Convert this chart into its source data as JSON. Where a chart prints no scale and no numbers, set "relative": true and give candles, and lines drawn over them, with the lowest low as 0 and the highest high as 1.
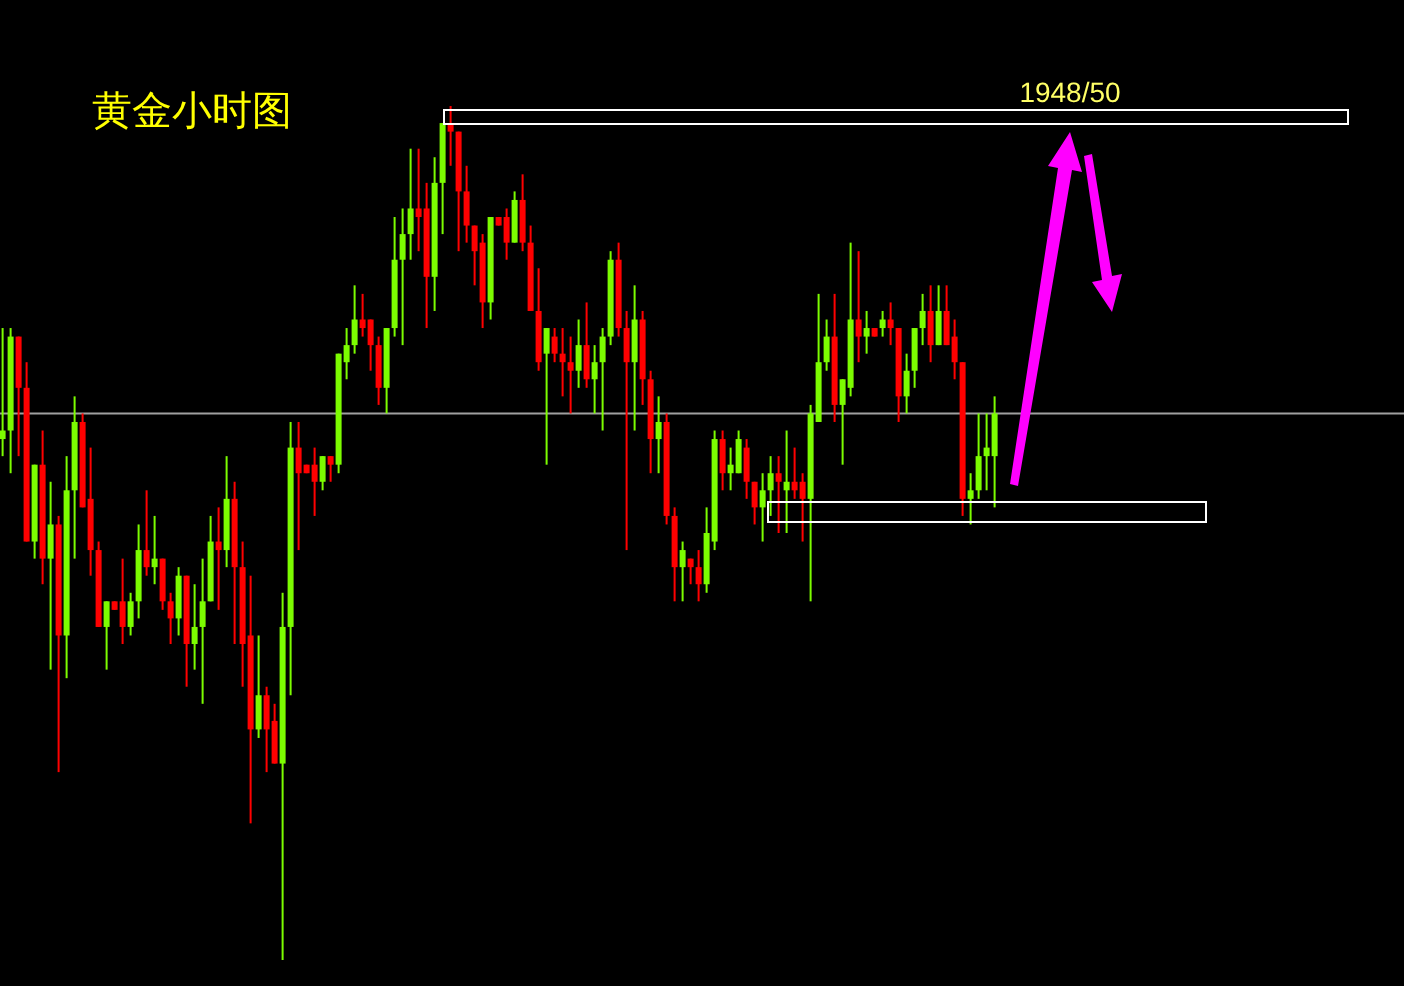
{
  "chart_data": {
    "type": "candlestick",
    "title": "黄金小时图",
    "relative": true,
    "annotations": [
      "1948/50"
    ],
    "ref_lines": [
      {
        "axis": "y",
        "value": 0.64,
        "color": "#a0a0a0"
      }
    ],
    "categories": [
      null,
      null,
      null,
      null,
      null,
      null,
      null,
      null,
      null,
      null,
      null,
      null,
      null,
      null,
      null,
      null,
      null,
      null,
      null,
      null,
      null,
      null,
      null,
      null,
      null,
      null,
      null,
      null,
      null,
      null,
      null,
      null,
      null,
      null,
      null,
      null,
      null,
      null,
      null,
      null,
      null,
      null,
      null,
      null,
      null,
      null,
      null,
      null,
      null,
      null,
      null,
      null,
      null,
      null,
      null,
      null,
      null,
      null,
      null,
      null,
      null,
      null,
      null,
      null,
      null,
      null,
      null,
      null,
      null,
      null,
      null,
      null,
      null,
      null,
      null,
      null,
      null,
      null,
      null,
      null,
      null,
      null,
      null,
      null,
      null,
      null,
      null,
      null,
      null,
      null,
      null,
      null,
      null,
      null,
      null,
      null,
      null,
      null,
      null,
      null,
      null,
      null,
      null,
      null,
      null,
      null,
      null,
      null,
      null,
      null,
      null,
      null,
      null,
      null,
      null,
      null,
      null,
      null,
      null,
      null,
      null,
      null,
      null,
      null,
      null
    ],
    "ohlc": [
      [
        0.61,
        0.74,
        0.59,
        0.62
      ],
      [
        0.62,
        0.74,
        0.57,
        0.73
      ],
      [
        0.73,
        0.73,
        0.59,
        0.67
      ],
      [
        0.67,
        0.7,
        0.49,
        0.49
      ],
      [
        0.49,
        0.58,
        0.47,
        0.58
      ],
      [
        0.58,
        0.62,
        0.44,
        0.47
      ],
      [
        0.47,
        0.56,
        0.34,
        0.51
      ],
      [
        0.51,
        0.52,
        0.22,
        0.38
      ],
      [
        0.38,
        0.59,
        0.33,
        0.55
      ],
      [
        0.55,
        0.66,
        0.47,
        0.63
      ],
      [
        0.63,
        0.64,
        0.53,
        0.53
      ],
      [
        0.54,
        0.6,
        0.45,
        0.48
      ],
      [
        0.48,
        0.49,
        0.39,
        0.39
      ],
      [
        0.39,
        0.42,
        0.34,
        0.42
      ],
      [
        0.42,
        0.42,
        0.41,
        0.41
      ],
      [
        0.42,
        0.47,
        0.37,
        0.39
      ],
      [
        0.39,
        0.43,
        0.38,
        0.42
      ],
      [
        0.42,
        0.51,
        0.4,
        0.48
      ],
      [
        0.48,
        0.55,
        0.45,
        0.46
      ],
      [
        0.46,
        0.52,
        0.44,
        0.47
      ],
      [
        0.47,
        0.47,
        0.41,
        0.42
      ],
      [
        0.42,
        0.43,
        0.37,
        0.4
      ],
      [
        0.4,
        0.46,
        0.38,
        0.45
      ],
      [
        0.45,
        0.45,
        0.32,
        0.37
      ],
      [
        0.37,
        0.44,
        0.34,
        0.39
      ],
      [
        0.39,
        0.47,
        0.3,
        0.42
      ],
      [
        0.42,
        0.52,
        0.42,
        0.49
      ],
      [
        0.49,
        0.53,
        0.41,
        0.48
      ],
      [
        0.48,
        0.59,
        0.46,
        0.54
      ],
      [
        0.54,
        0.56,
        0.37,
        0.46
      ],
      [
        0.46,
        0.49,
        0.32,
        0.37
      ],
      [
        0.38,
        0.45,
        0.16,
        0.27
      ],
      [
        0.27,
        0.38,
        0.26,
        0.31
      ],
      [
        0.31,
        0.32,
        0.22,
        0.27
      ],
      [
        0.28,
        0.3,
        0.23,
        0.23
      ],
      [
        0.23,
        0.43,
        0.0,
        0.39
      ],
      [
        0.39,
        0.63,
        0.31,
        0.6
      ],
      [
        0.6,
        0.63,
        0.48,
        0.57
      ],
      [
        0.58,
        0.58,
        0.57,
        0.57
      ],
      [
        0.58,
        0.6,
        0.52,
        0.56
      ],
      [
        0.56,
        0.59,
        0.55,
        0.59
      ],
      [
        0.59,
        0.59,
        0.56,
        0.58
      ],
      [
        0.58,
        0.71,
        0.57,
        0.71
      ],
      [
        0.7,
        0.74,
        0.68,
        0.72
      ],
      [
        0.72,
        0.79,
        0.71,
        0.75
      ],
      [
        0.75,
        0.78,
        0.73,
        0.74
      ],
      [
        0.75,
        0.75,
        0.69,
        0.72
      ],
      [
        0.72,
        0.73,
        0.65,
        0.67
      ],
      [
        0.67,
        0.74,
        0.64,
        0.74
      ],
      [
        0.74,
        0.87,
        0.73,
        0.82
      ],
      [
        0.82,
        0.88,
        0.72,
        0.85
      ],
      [
        0.85,
        0.95,
        0.82,
        0.88
      ],
      [
        0.88,
        0.95,
        0.83,
        0.87
      ],
      [
        0.88,
        0.91,
        0.74,
        0.8
      ],
      [
        0.8,
        0.94,
        0.76,
        0.91
      ],
      [
        0.91,
        0.98,
        0.85,
        0.98
      ],
      [
        0.98,
        1.0,
        0.93,
        0.97
      ],
      [
        0.97,
        0.97,
        0.83,
        0.9
      ],
      [
        0.9,
        0.93,
        0.84,
        0.86
      ],
      [
        0.86,
        0.86,
        0.79,
        0.83
      ],
      [
        0.84,
        0.85,
        0.74,
        0.77
      ],
      [
        0.77,
        0.87,
        0.75,
        0.87
      ],
      [
        0.87,
        0.87,
        0.86,
        0.86
      ],
      [
        0.87,
        0.88,
        0.82,
        0.84
      ],
      [
        0.84,
        0.9,
        0.84,
        0.89
      ],
      [
        0.89,
        0.92,
        0.83,
        0.84
      ],
      [
        0.84,
        0.86,
        0.76,
        0.76
      ],
      [
        0.76,
        0.81,
        0.69,
        0.7
      ],
      [
        0.71,
        0.74,
        0.58,
        0.74
      ],
      [
        0.73,
        0.74,
        0.7,
        0.71
      ],
      [
        0.71,
        0.74,
        0.66,
        0.7
      ],
      [
        0.7,
        0.73,
        0.64,
        0.69
      ],
      [
        0.69,
        0.75,
        0.67,
        0.72
      ],
      [
        0.72,
        0.77,
        0.67,
        0.68
      ],
      [
        0.68,
        0.72,
        0.64,
        0.7
      ],
      [
        0.7,
        0.74,
        0.62,
        0.73
      ],
      [
        0.73,
        0.83,
        0.72,
        0.82
      ],
      [
        0.82,
        0.84,
        0.73,
        0.74
      ],
      [
        0.74,
        0.76,
        0.48,
        0.7
      ],
      [
        0.7,
        0.79,
        0.62,
        0.75
      ],
      [
        0.75,
        0.76,
        0.65,
        0.68
      ],
      [
        0.68,
        0.69,
        0.57,
        0.61
      ],
      [
        0.61,
        0.66,
        0.57,
        0.63
      ],
      [
        0.63,
        0.64,
        0.51,
        0.52
      ],
      [
        0.52,
        0.53,
        0.42,
        0.46
      ],
      [
        0.46,
        0.49,
        0.42,
        0.48
      ],
      [
        0.47,
        0.47,
        0.44,
        0.46
      ],
      [
        0.46,
        0.48,
        0.42,
        0.44
      ],
      [
        0.44,
        0.53,
        0.43,
        0.5
      ],
      [
        0.49,
        0.62,
        0.48,
        0.61
      ],
      [
        0.61,
        0.62,
        0.55,
        0.57
      ],
      [
        0.57,
        0.6,
        0.55,
        0.58
      ],
      [
        0.57,
        0.62,
        0.57,
        0.61
      ],
      [
        0.6,
        0.61,
        0.54,
        0.56
      ],
      [
        0.56,
        0.56,
        0.51,
        0.53
      ],
      [
        0.53,
        0.57,
        0.49,
        0.55
      ],
      [
        0.55,
        0.59,
        0.52,
        0.57
      ],
      [
        0.57,
        0.59,
        0.5,
        0.56
      ],
      [
        0.55,
        0.62,
        0.5,
        0.56
      ],
      [
        0.56,
        0.6,
        0.54,
        0.55
      ],
      [
        0.56,
        0.57,
        0.49,
        0.54
      ],
      [
        0.54,
        0.65,
        0.42,
        0.64
      ],
      [
        0.63,
        0.78,
        0.63,
        0.7
      ],
      [
        0.7,
        0.75,
        0.69,
        0.73
      ],
      [
        0.73,
        0.78,
        0.63,
        0.65
      ],
      [
        0.65,
        0.68,
        0.58,
        0.68
      ],
      [
        0.67,
        0.84,
        0.66,
        0.75
      ],
      [
        0.75,
        0.83,
        0.7,
        0.73
      ],
      [
        0.73,
        0.76,
        0.71,
        0.74
      ],
      [
        0.74,
        0.74,
        0.73,
        0.73
      ],
      [
        0.74,
        0.76,
        0.73,
        0.75
      ],
      [
        0.75,
        0.77,
        0.72,
        0.74
      ],
      [
        0.74,
        0.74,
        0.63,
        0.66
      ],
      [
        0.66,
        0.71,
        0.64,
        0.69
      ],
      [
        0.69,
        0.74,
        0.67,
        0.74
      ],
      [
        0.74,
        0.78,
        0.72,
        0.76
      ],
      [
        0.76,
        0.79,
        0.7,
        0.72
      ],
      [
        0.72,
        0.79,
        0.72,
        0.76
      ],
      [
        0.76,
        0.79,
        0.72,
        0.72
      ],
      [
        0.73,
        0.75,
        0.68,
        0.7
      ],
      [
        0.7,
        0.7,
        0.52,
        0.54
      ],
      [
        0.54,
        0.57,
        0.51,
        0.55
      ],
      [
        0.55,
        0.64,
        0.54,
        0.59
      ],
      [
        0.59,
        0.64,
        0.55,
        0.6
      ],
      [
        0.59,
        0.66,
        0.53,
        0.64
      ]
    ]
  }
}
